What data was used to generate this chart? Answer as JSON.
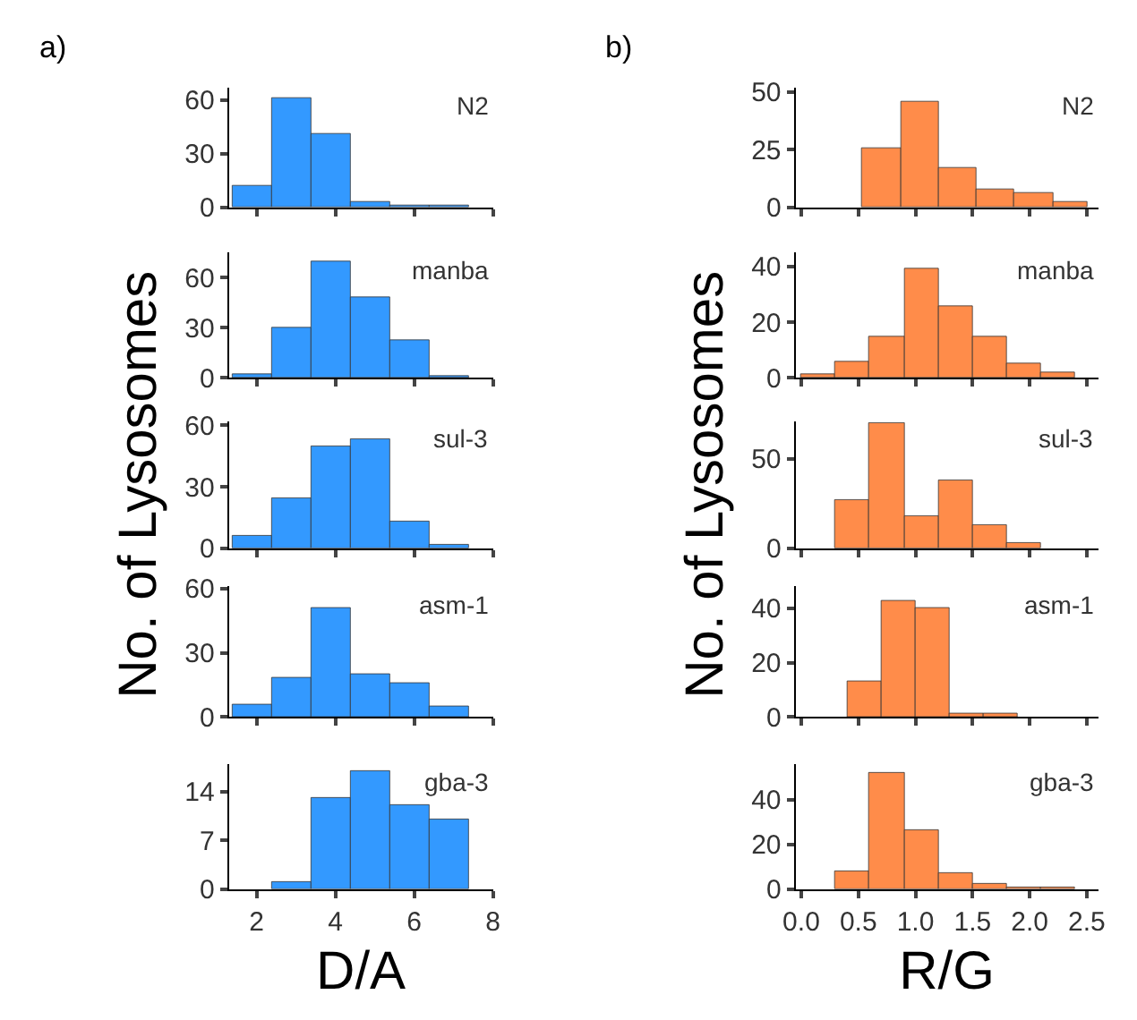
{
  "chart_data": [
    {
      "type": "histogram",
      "title": "a)",
      "annotations": [
        "N2"
      ],
      "color": "#3399ff",
      "bins": [
        1.4,
        2.4,
        3.4,
        4.4,
        5.4,
        6.4,
        7.4
      ],
      "values": [
        12,
        61,
        41,
        3,
        1,
        1
      ],
      "xlim": [
        1.3,
        8
      ],
      "xticks": [
        2,
        4,
        6,
        8
      ],
      "ylim": [
        0,
        67
      ],
      "yticks": [
        0,
        30,
        60
      ],
      "tick_labels": "y"
    },
    {
      "type": "histogram",
      "annotations": [
        "manba"
      ],
      "color": "#3399ff",
      "bins": [
        1.4,
        2.4,
        3.4,
        4.4,
        5.4,
        6.4,
        7.4
      ],
      "values": [
        2,
        30,
        70,
        48,
        23,
        1
      ],
      "xlim": [
        1.3,
        8
      ],
      "xticks": [
        2,
        4,
        6,
        8
      ],
      "ylim": [
        0,
        75
      ],
      "yticks": [
        0,
        30,
        60
      ],
      "tick_labels": "y"
    },
    {
      "type": "histogram",
      "ylabel": "No. of Lysosomes",
      "annotations": [
        "sul-3"
      ],
      "color": "#3399ff",
      "bins": [
        1.4,
        2.4,
        3.4,
        4.4,
        5.4,
        6.4,
        7.4
      ],
      "values": [
        6,
        24,
        50,
        53,
        13,
        2
      ],
      "xlim": [
        1.3,
        8
      ],
      "xticks": [
        2,
        4,
        6,
        8
      ],
      "ylim": [
        0,
        62
      ],
      "yticks": [
        0,
        30,
        60
      ],
      "tick_labels": "y"
    },
    {
      "type": "histogram",
      "annotations": [
        "asm-1"
      ],
      "color": "#3399ff",
      "bins": [
        1.4,
        2.4,
        3.4,
        4.4,
        5.4,
        6.4,
        7.4
      ],
      "values": [
        6,
        18,
        51,
        20,
        16,
        5
      ],
      "xlim": [
        1.3,
        8
      ],
      "xticks": [
        2,
        4,
        6,
        8
      ],
      "ylim": [
        0,
        61
      ],
      "yticks": [
        0,
        30,
        60
      ],
      "tick_labels": "y"
    },
    {
      "type": "histogram",
      "xlabel": "D/A",
      "annotations": [
        "gba-3"
      ],
      "color": "#3399ff",
      "bins": [
        2.4,
        3.4,
        4.4,
        5.4,
        6.4,
        7.4
      ],
      "values": [
        1,
        13,
        17,
        12,
        10
      ],
      "xlim": [
        1.3,
        8
      ],
      "xticks": [
        2,
        4,
        6,
        8
      ],
      "ylim": [
        0,
        18
      ],
      "yticks": [
        0,
        7,
        14
      ]
    },
    {
      "type": "histogram",
      "title": "b)",
      "annotations": [
        "N2"
      ],
      "color": "#ff8c4a",
      "bins": [
        0.53,
        0.87,
        1.2,
        1.53,
        1.87,
        2.2,
        2.5
      ],
      "values": [
        26,
        46,
        17,
        8,
        6,
        2
      ],
      "xlim": [
        -0.05,
        2.6
      ],
      "xticks": [
        0,
        0.5,
        1,
        1.5,
        2,
        2.5
      ],
      "ylim": [
        0,
        52
      ],
      "yticks": [
        0,
        25,
        50
      ],
      "tick_labels": "y"
    },
    {
      "type": "histogram",
      "annotations": [
        "manba"
      ],
      "color": "#ff8c4a",
      "bins": [
        0,
        0.3,
        0.6,
        0.9,
        1.2,
        1.5,
        1.8,
        2.1,
        2.4
      ],
      "values": [
        1,
        6,
        15,
        39,
        26,
        15,
        5,
        2
      ],
      "xlim": [
        -0.05,
        2.6
      ],
      "xticks": [
        0,
        0.5,
        1,
        1.5,
        2,
        2.5
      ],
      "ylim": [
        0,
        45
      ],
      "yticks": [
        0,
        20,
        40
      ],
      "tick_labels": "y"
    },
    {
      "type": "histogram",
      "ylabel": "No. of Lysosomes",
      "annotations": [
        "sul-3"
      ],
      "color": "#ff8c4a",
      "bins": [
        0.3,
        0.6,
        0.9,
        1.2,
        1.5,
        1.8,
        2.1
      ],
      "values": [
        27,
        70,
        18,
        38,
        13,
        3
      ],
      "xlim": [
        -0.05,
        2.6
      ],
      "xticks": [
        0,
        0.5,
        1,
        1.5,
        2,
        2.5
      ],
      "ylim": [
        0,
        71
      ],
      "yticks": [
        0,
        50
      ],
      "tick_labels": "y"
    },
    {
      "type": "histogram",
      "annotations": [
        "asm-1"
      ],
      "color": "#ff8c4a",
      "bins": [
        0.4,
        0.7,
        1.0,
        1.3,
        1.6,
        1.9
      ],
      "values": [
        13,
        43,
        40,
        1,
        1
      ],
      "xlim": [
        -0.05,
        2.6
      ],
      "xticks": [
        0,
        0.5,
        1,
        1.5,
        2,
        2.5
      ],
      "ylim": [
        0,
        48
      ],
      "yticks": [
        0,
        20,
        40
      ],
      "tick_labels": "y"
    },
    {
      "type": "histogram",
      "xlabel": "R/G",
      "annotations": [
        "gba-3"
      ],
      "color": "#ff8c4a",
      "bins": [
        0.3,
        0.6,
        0.9,
        1.2,
        1.5,
        1.8,
        2.1,
        2.4
      ],
      "values": [
        8,
        52,
        26,
        7,
        2,
        1,
        1
      ],
      "xlim": [
        -0.05,
        2.6
      ],
      "xticks": [
        {
          "value": 0,
          "label": "0.0"
        },
        0.5,
        {
          "value": 1,
          "label": "1.0"
        },
        1.5,
        {
          "value": 2,
          "label": "2.0"
        },
        2.5
      ],
      "ylim": [
        0,
        56
      ],
      "yticks": [
        0,
        20,
        40
      ]
    }
  ]
}
